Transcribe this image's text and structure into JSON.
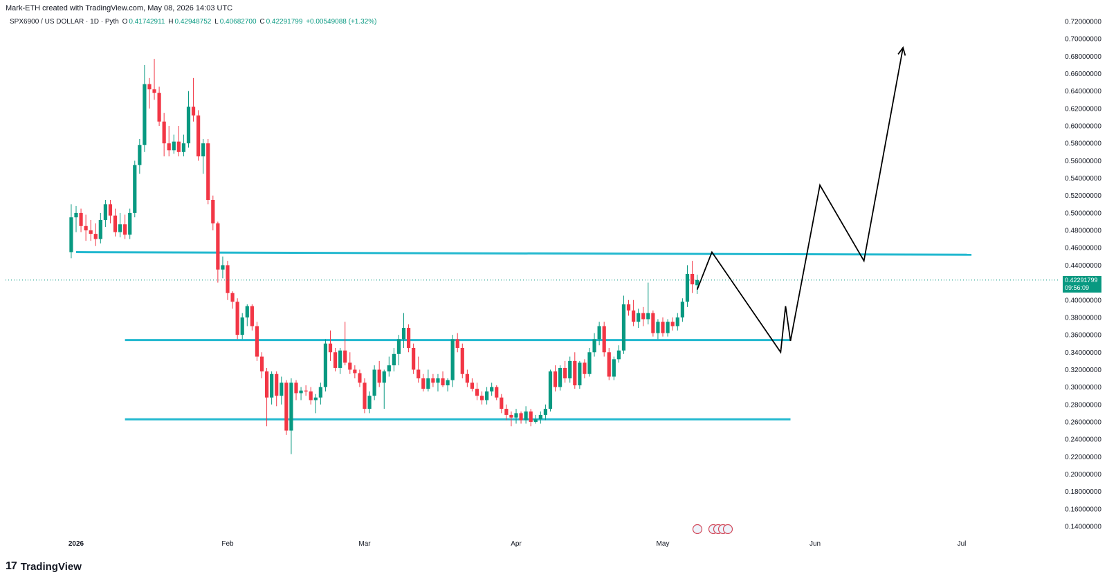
{
  "header": {
    "created_by": "Mark-ETH created with TradingView.com, May 08, 2026 14:03 UTC"
  },
  "legend": {
    "symbol": "SPX6900 / US DOLLAR · 1D · Pyth",
    "open_label": "O",
    "open": "0.41742911",
    "high_label": "H",
    "high": "0.42948752",
    "low_label": "L",
    "low": "0.40682700",
    "close_label": "C",
    "close": "0.42291799",
    "change": "+0.00549088 (+1.32%)"
  },
  "price_badge": {
    "price": "0.42291799",
    "countdown": "09:56:09"
  },
  "footer": {
    "brand": "TradingView",
    "logo_mark": "17"
  },
  "colors": {
    "up": "#089981",
    "down": "#f23645",
    "level_line": "#22b8cf",
    "projection": "#000000",
    "grid_text": "#131722"
  },
  "chart_data": {
    "type": "candlestick",
    "title": "SPX6900 / US DOLLAR · 1D · Pyth",
    "y_axis_labels": [
      "0.72000000",
      "0.70000000",
      "0.68000000",
      "0.66000000",
      "0.64000000",
      "0.62000000",
      "0.60000000",
      "0.58000000",
      "0.56000000",
      "0.54000000",
      "0.52000000",
      "0.50000000",
      "0.48000000",
      "0.46000000",
      "0.44000000",
      "0.40000000",
      "0.38000000",
      "0.36000000",
      "0.34000000",
      "0.32000000",
      "0.30000000",
      "0.28000000",
      "0.26000000",
      "0.24000000",
      "0.22000000",
      "0.20000000",
      "0.18000000",
      "0.16000000",
      "0.14000000"
    ],
    "x_axis_labels": [
      "2026",
      "Feb",
      "Mar",
      "Apr",
      "May",
      "Jun",
      "Jul"
    ],
    "ylim": [
      0.13,
      0.725
    ],
    "current_price": 0.42291799,
    "horizontal_levels": [
      {
        "name": "resistance",
        "from": "2026-01-01",
        "to": "2026-07-03",
        "y_start": 0.455,
        "y_end": 0.452
      },
      {
        "name": "mid-range",
        "from": "2026-01-11",
        "to": "2026-05-27",
        "y": 0.354
      },
      {
        "name": "support",
        "from": "2026-01-11",
        "to": "2026-05-27",
        "y": 0.263
      }
    ],
    "projection_path": [
      {
        "date": "2026-05-08",
        "y": 0.412
      },
      {
        "date": "2026-05-11",
        "y": 0.455
      },
      {
        "date": "2026-05-25",
        "y": 0.34
      },
      {
        "date": "2026-05-26",
        "y": 0.393
      },
      {
        "date": "2026-05-27",
        "y": 0.353
      },
      {
        "date": "2026-06-02",
        "y": 0.532
      },
      {
        "date": "2026-06-11",
        "y": 0.445
      },
      {
        "date": "2026-06-19",
        "y": 0.69
      }
    ],
    "candles": [
      {
        "d": "2025-12-31",
        "o": 0.455,
        "h": 0.51,
        "l": 0.448,
        "c": 0.495
      },
      {
        "d": "2026-01-01",
        "o": 0.495,
        "h": 0.508,
        "l": 0.478,
        "c": 0.5
      },
      {
        "d": "2026-01-02",
        "o": 0.5,
        "h": 0.505,
        "l": 0.478,
        "c": 0.485
      },
      {
        "d": "2026-01-03",
        "o": 0.485,
        "h": 0.498,
        "l": 0.468,
        "c": 0.48
      },
      {
        "d": "2026-01-04",
        "o": 0.48,
        "h": 0.492,
        "l": 0.468,
        "c": 0.476
      },
      {
        "d": "2026-01-05",
        "o": 0.476,
        "h": 0.488,
        "l": 0.462,
        "c": 0.47
      },
      {
        "d": "2026-01-06",
        "o": 0.47,
        "h": 0.5,
        "l": 0.465,
        "c": 0.492
      },
      {
        "d": "2026-01-07",
        "o": 0.492,
        "h": 0.515,
        "l": 0.484,
        "c": 0.51
      },
      {
        "d": "2026-01-08",
        "o": 0.51,
        "h": 0.515,
        "l": 0.488,
        "c": 0.497
      },
      {
        "d": "2026-01-09",
        "o": 0.497,
        "h": 0.505,
        "l": 0.473,
        "c": 0.478
      },
      {
        "d": "2026-01-10",
        "o": 0.478,
        "h": 0.5,
        "l": 0.472,
        "c": 0.487
      },
      {
        "d": "2026-01-11",
        "o": 0.487,
        "h": 0.498,
        "l": 0.47,
        "c": 0.475
      },
      {
        "d": "2026-01-12",
        "o": 0.475,
        "h": 0.505,
        "l": 0.47,
        "c": 0.5
      },
      {
        "d": "2026-01-13",
        "o": 0.5,
        "h": 0.56,
        "l": 0.495,
        "c": 0.555
      },
      {
        "d": "2026-01-14",
        "o": 0.555,
        "h": 0.585,
        "l": 0.545,
        "c": 0.578
      },
      {
        "d": "2026-01-15",
        "o": 0.578,
        "h": 0.67,
        "l": 0.57,
        "c": 0.648
      },
      {
        "d": "2026-01-16",
        "o": 0.648,
        "h": 0.655,
        "l": 0.62,
        "c": 0.642
      },
      {
        "d": "2026-01-17",
        "o": 0.642,
        "h": 0.677,
        "l": 0.63,
        "c": 0.638
      },
      {
        "d": "2026-01-18",
        "o": 0.638,
        "h": 0.645,
        "l": 0.6,
        "c": 0.605
      },
      {
        "d": "2026-01-19",
        "o": 0.605,
        "h": 0.615,
        "l": 0.565,
        "c": 0.58
      },
      {
        "d": "2026-01-20",
        "o": 0.58,
        "h": 0.6,
        "l": 0.565,
        "c": 0.572
      },
      {
        "d": "2026-01-21",
        "o": 0.572,
        "h": 0.59,
        "l": 0.568,
        "c": 0.582
      },
      {
        "d": "2026-01-22",
        "o": 0.582,
        "h": 0.6,
        "l": 0.565,
        "c": 0.57
      },
      {
        "d": "2026-01-23",
        "o": 0.57,
        "h": 0.59,
        "l": 0.565,
        "c": 0.58
      },
      {
        "d": "2026-01-24",
        "o": 0.58,
        "h": 0.64,
        "l": 0.575,
        "c": 0.622
      },
      {
        "d": "2026-01-25",
        "o": 0.622,
        "h": 0.655,
        "l": 0.605,
        "c": 0.612
      },
      {
        "d": "2026-01-26",
        "o": 0.612,
        "h": 0.618,
        "l": 0.56,
        "c": 0.565
      },
      {
        "d": "2026-01-27",
        "o": 0.565,
        "h": 0.585,
        "l": 0.545,
        "c": 0.58
      },
      {
        "d": "2026-01-28",
        "o": 0.58,
        "h": 0.585,
        "l": 0.51,
        "c": 0.515
      },
      {
        "d": "2026-01-29",
        "o": 0.515,
        "h": 0.52,
        "l": 0.48,
        "c": 0.488
      },
      {
        "d": "2026-01-30",
        "o": 0.488,
        "h": 0.49,
        "l": 0.42,
        "c": 0.435
      },
      {
        "d": "2026-01-31",
        "o": 0.435,
        "h": 0.45,
        "l": 0.425,
        "c": 0.44
      },
      {
        "d": "2026-02-01",
        "o": 0.44,
        "h": 0.445,
        "l": 0.4,
        "c": 0.408
      },
      {
        "d": "2026-02-02",
        "o": 0.408,
        "h": 0.41,
        "l": 0.39,
        "c": 0.398
      },
      {
        "d": "2026-02-03",
        "o": 0.398,
        "h": 0.402,
        "l": 0.355,
        "c": 0.36
      },
      {
        "d": "2026-02-04",
        "o": 0.36,
        "h": 0.385,
        "l": 0.355,
        "c": 0.38
      },
      {
        "d": "2026-02-05",
        "o": 0.38,
        "h": 0.395,
        "l": 0.37,
        "c": 0.393
      },
      {
        "d": "2026-02-06",
        "o": 0.393,
        "h": 0.395,
        "l": 0.365,
        "c": 0.37
      },
      {
        "d": "2026-02-07",
        "o": 0.37,
        "h": 0.375,
        "l": 0.33,
        "c": 0.335
      },
      {
        "d": "2026-02-08",
        "o": 0.335,
        "h": 0.34,
        "l": 0.31,
        "c": 0.318
      },
      {
        "d": "2026-02-09",
        "o": 0.318,
        "h": 0.322,
        "l": 0.255,
        "c": 0.288
      },
      {
        "d": "2026-02-10",
        "o": 0.288,
        "h": 0.318,
        "l": 0.28,
        "c": 0.315
      },
      {
        "d": "2026-02-11",
        "o": 0.315,
        "h": 0.318,
        "l": 0.278,
        "c": 0.29
      },
      {
        "d": "2026-02-12",
        "o": 0.29,
        "h": 0.312,
        "l": 0.28,
        "c": 0.305
      },
      {
        "d": "2026-02-13",
        "o": 0.305,
        "h": 0.308,
        "l": 0.245,
        "c": 0.25
      },
      {
        "d": "2026-02-14",
        "o": 0.25,
        "h": 0.31,
        "l": 0.223,
        "c": 0.305
      },
      {
        "d": "2026-02-15",
        "o": 0.305,
        "h": 0.308,
        "l": 0.285,
        "c": 0.293
      },
      {
        "d": "2026-02-16",
        "o": 0.293,
        "h": 0.3,
        "l": 0.285,
        "c": 0.296
      },
      {
        "d": "2026-02-17",
        "o": 0.296,
        "h": 0.302,
        "l": 0.29,
        "c": 0.295
      },
      {
        "d": "2026-02-18",
        "o": 0.295,
        "h": 0.3,
        "l": 0.28,
        "c": 0.285
      },
      {
        "d": "2026-02-19",
        "o": 0.285,
        "h": 0.292,
        "l": 0.27,
        "c": 0.288
      },
      {
        "d": "2026-02-20",
        "o": 0.288,
        "h": 0.305,
        "l": 0.28,
        "c": 0.3
      },
      {
        "d": "2026-02-21",
        "o": 0.3,
        "h": 0.355,
        "l": 0.295,
        "c": 0.35
      },
      {
        "d": "2026-02-22",
        "o": 0.35,
        "h": 0.365,
        "l": 0.33,
        "c": 0.34
      },
      {
        "d": "2026-02-23",
        "o": 0.34,
        "h": 0.345,
        "l": 0.318,
        "c": 0.322
      },
      {
        "d": "2026-02-24",
        "o": 0.322,
        "h": 0.345,
        "l": 0.315,
        "c": 0.342
      },
      {
        "d": "2026-02-25",
        "o": 0.342,
        "h": 0.375,
        "l": 0.325,
        "c": 0.328
      },
      {
        "d": "2026-02-26",
        "o": 0.328,
        "h": 0.34,
        "l": 0.315,
        "c": 0.32
      },
      {
        "d": "2026-02-27",
        "o": 0.32,
        "h": 0.325,
        "l": 0.31,
        "c": 0.316
      },
      {
        "d": "2026-02-28",
        "o": 0.316,
        "h": 0.32,
        "l": 0.3,
        "c": 0.305
      },
      {
        "d": "2026-03-01",
        "o": 0.305,
        "h": 0.31,
        "l": 0.27,
        "c": 0.275
      },
      {
        "d": "2026-03-02",
        "o": 0.275,
        "h": 0.295,
        "l": 0.27,
        "c": 0.29
      },
      {
        "d": "2026-03-03",
        "o": 0.29,
        "h": 0.325,
        "l": 0.285,
        "c": 0.32
      },
      {
        "d": "2026-03-04",
        "o": 0.32,
        "h": 0.33,
        "l": 0.3,
        "c": 0.305
      },
      {
        "d": "2026-03-05",
        "o": 0.305,
        "h": 0.32,
        "l": 0.275,
        "c": 0.318
      },
      {
        "d": "2026-03-06",
        "o": 0.318,
        "h": 0.335,
        "l": 0.312,
        "c": 0.325
      },
      {
        "d": "2026-03-07",
        "o": 0.325,
        "h": 0.345,
        "l": 0.318,
        "c": 0.338
      },
      {
        "d": "2026-03-08",
        "o": 0.338,
        "h": 0.36,
        "l": 0.325,
        "c": 0.355
      },
      {
        "d": "2026-03-09",
        "o": 0.355,
        "h": 0.385,
        "l": 0.345,
        "c": 0.368
      },
      {
        "d": "2026-03-10",
        "o": 0.368,
        "h": 0.372,
        "l": 0.34,
        "c": 0.345
      },
      {
        "d": "2026-03-11",
        "o": 0.345,
        "h": 0.35,
        "l": 0.315,
        "c": 0.32
      },
      {
        "d": "2026-03-12",
        "o": 0.32,
        "h": 0.335,
        "l": 0.305,
        "c": 0.31
      },
      {
        "d": "2026-03-13",
        "o": 0.31,
        "h": 0.315,
        "l": 0.295,
        "c": 0.298
      },
      {
        "d": "2026-03-14",
        "o": 0.298,
        "h": 0.32,
        "l": 0.295,
        "c": 0.31
      },
      {
        "d": "2026-03-15",
        "o": 0.31,
        "h": 0.315,
        "l": 0.3,
        "c": 0.305
      },
      {
        "d": "2026-03-16",
        "o": 0.305,
        "h": 0.315,
        "l": 0.295,
        "c": 0.31
      },
      {
        "d": "2026-03-17",
        "o": 0.31,
        "h": 0.318,
        "l": 0.3,
        "c": 0.302
      },
      {
        "d": "2026-03-18",
        "o": 0.302,
        "h": 0.31,
        "l": 0.295,
        "c": 0.308
      },
      {
        "d": "2026-03-19",
        "o": 0.308,
        "h": 0.36,
        "l": 0.3,
        "c": 0.355
      },
      {
        "d": "2026-03-20",
        "o": 0.355,
        "h": 0.362,
        "l": 0.34,
        "c": 0.345
      },
      {
        "d": "2026-03-21",
        "o": 0.345,
        "h": 0.35,
        "l": 0.31,
        "c": 0.315
      },
      {
        "d": "2026-03-22",
        "o": 0.315,
        "h": 0.32,
        "l": 0.3,
        "c": 0.305
      },
      {
        "d": "2026-03-23",
        "o": 0.305,
        "h": 0.31,
        "l": 0.295,
        "c": 0.298
      },
      {
        "d": "2026-03-24",
        "o": 0.298,
        "h": 0.305,
        "l": 0.285,
        "c": 0.29
      },
      {
        "d": "2026-03-25",
        "o": 0.29,
        "h": 0.295,
        "l": 0.28,
        "c": 0.285
      },
      {
        "d": "2026-03-26",
        "o": 0.285,
        "h": 0.3,
        "l": 0.28,
        "c": 0.295
      },
      {
        "d": "2026-03-27",
        "o": 0.295,
        "h": 0.305,
        "l": 0.29,
        "c": 0.3
      },
      {
        "d": "2026-03-28",
        "o": 0.3,
        "h": 0.302,
        "l": 0.285,
        "c": 0.288
      },
      {
        "d": "2026-03-29",
        "o": 0.288,
        "h": 0.292,
        "l": 0.27,
        "c": 0.275
      },
      {
        "d": "2026-03-30",
        "o": 0.275,
        "h": 0.28,
        "l": 0.262,
        "c": 0.268
      },
      {
        "d": "2026-03-31",
        "o": 0.268,
        "h": 0.272,
        "l": 0.255,
        "c": 0.265
      },
      {
        "d": "2026-04-01",
        "o": 0.265,
        "h": 0.275,
        "l": 0.258,
        "c": 0.27
      },
      {
        "d": "2026-04-02",
        "o": 0.27,
        "h": 0.272,
        "l": 0.258,
        "c": 0.262
      },
      {
        "d": "2026-04-03",
        "o": 0.262,
        "h": 0.278,
        "l": 0.258,
        "c": 0.272
      },
      {
        "d": "2026-04-04",
        "o": 0.272,
        "h": 0.275,
        "l": 0.255,
        "c": 0.26
      },
      {
        "d": "2026-04-05",
        "o": 0.26,
        "h": 0.268,
        "l": 0.258,
        "c": 0.263
      },
      {
        "d": "2026-04-06",
        "o": 0.263,
        "h": 0.272,
        "l": 0.258,
        "c": 0.268
      },
      {
        "d": "2026-04-07",
        "o": 0.268,
        "h": 0.28,
        "l": 0.262,
        "c": 0.275
      },
      {
        "d": "2026-04-08",
        "o": 0.275,
        "h": 0.32,
        "l": 0.272,
        "c": 0.318
      },
      {
        "d": "2026-04-09",
        "o": 0.318,
        "h": 0.325,
        "l": 0.295,
        "c": 0.3
      },
      {
        "d": "2026-04-10",
        "o": 0.3,
        "h": 0.325,
        "l": 0.296,
        "c": 0.322
      },
      {
        "d": "2026-04-11",
        "o": 0.322,
        "h": 0.33,
        "l": 0.305,
        "c": 0.31
      },
      {
        "d": "2026-04-12",
        "o": 0.31,
        "h": 0.335,
        "l": 0.305,
        "c": 0.33
      },
      {
        "d": "2026-04-13",
        "o": 0.33,
        "h": 0.34,
        "l": 0.298,
        "c": 0.302
      },
      {
        "d": "2026-04-14",
        "o": 0.302,
        "h": 0.33,
        "l": 0.298,
        "c": 0.328
      },
      {
        "d": "2026-04-15",
        "o": 0.328,
        "h": 0.332,
        "l": 0.31,
        "c": 0.315
      },
      {
        "d": "2026-04-16",
        "o": 0.315,
        "h": 0.345,
        "l": 0.312,
        "c": 0.34
      },
      {
        "d": "2026-04-17",
        "o": 0.34,
        "h": 0.362,
        "l": 0.335,
        "c": 0.355
      },
      {
        "d": "2026-04-18",
        "o": 0.355,
        "h": 0.375,
        "l": 0.348,
        "c": 0.37
      },
      {
        "d": "2026-04-19",
        "o": 0.37,
        "h": 0.375,
        "l": 0.335,
        "c": 0.34
      },
      {
        "d": "2026-04-20",
        "o": 0.34,
        "h": 0.345,
        "l": 0.308,
        "c": 0.312
      },
      {
        "d": "2026-04-21",
        "o": 0.312,
        "h": 0.335,
        "l": 0.308,
        "c": 0.332
      },
      {
        "d": "2026-04-22",
        "o": 0.332,
        "h": 0.348,
        "l": 0.328,
        "c": 0.342
      },
      {
        "d": "2026-04-23",
        "o": 0.342,
        "h": 0.405,
        "l": 0.338,
        "c": 0.395
      },
      {
        "d": "2026-04-24",
        "o": 0.395,
        "h": 0.4,
        "l": 0.382,
        "c": 0.388
      },
      {
        "d": "2026-04-25",
        "o": 0.388,
        "h": 0.4,
        "l": 0.37,
        "c": 0.375
      },
      {
        "d": "2026-04-26",
        "o": 0.375,
        "h": 0.39,
        "l": 0.368,
        "c": 0.385
      },
      {
        "d": "2026-04-27",
        "o": 0.385,
        "h": 0.392,
        "l": 0.37,
        "c": 0.378
      },
      {
        "d": "2026-04-28",
        "o": 0.378,
        "h": 0.42,
        "l": 0.372,
        "c": 0.385
      },
      {
        "d": "2026-04-29",
        "o": 0.385,
        "h": 0.388,
        "l": 0.358,
        "c": 0.362
      },
      {
        "d": "2026-04-30",
        "o": 0.362,
        "h": 0.378,
        "l": 0.355,
        "c": 0.375
      },
      {
        "d": "2026-05-01",
        "o": 0.375,
        "h": 0.38,
        "l": 0.358,
        "c": 0.362
      },
      {
        "d": "2026-05-02",
        "o": 0.362,
        "h": 0.378,
        "l": 0.358,
        "c": 0.375
      },
      {
        "d": "2026-05-03",
        "o": 0.375,
        "h": 0.38,
        "l": 0.365,
        "c": 0.37
      },
      {
        "d": "2026-05-04",
        "o": 0.37,
        "h": 0.385,
        "l": 0.365,
        "c": 0.38
      },
      {
        "d": "2026-05-05",
        "o": 0.38,
        "h": 0.402,
        "l": 0.375,
        "c": 0.398
      },
      {
        "d": "2026-05-06",
        "o": 0.398,
        "h": 0.44,
        "l": 0.392,
        "c": 0.43
      },
      {
        "d": "2026-05-07",
        "o": 0.43,
        "h": 0.445,
        "l": 0.408,
        "c": 0.418
      },
      {
        "d": "2026-05-08",
        "o": 0.417,
        "h": 0.429,
        "l": 0.407,
        "c": 0.423
      }
    ]
  }
}
